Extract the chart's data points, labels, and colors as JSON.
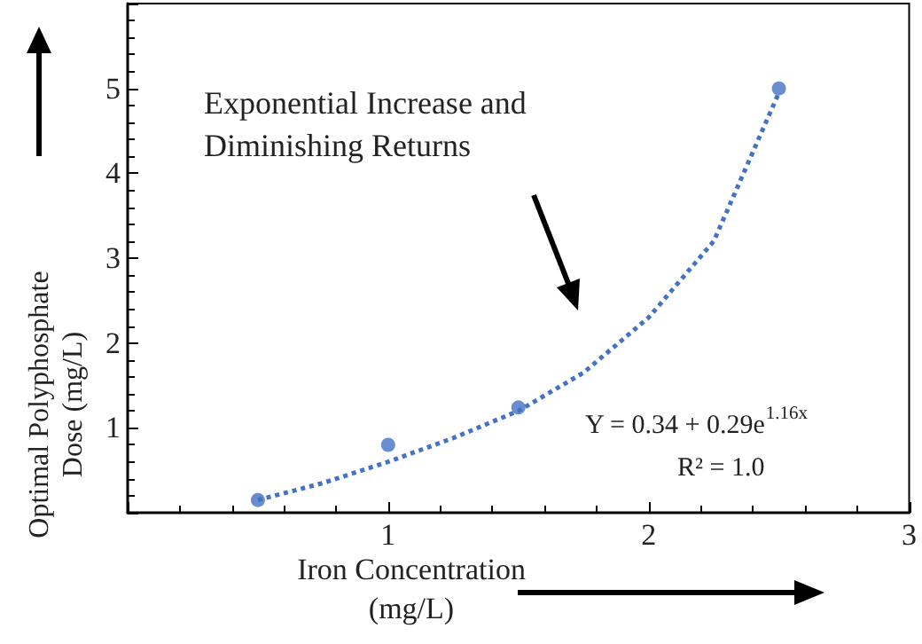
{
  "chart_data": {
    "type": "scatter",
    "xlabel": "Iron Concentration\n(mg/L)",
    "ylabel": "Optimal Polyphosphate\nDose (mg/L)",
    "xlim": [
      0,
      3
    ],
    "xticks": [
      1,
      2,
      3
    ],
    "ylim": [
      0,
      6
    ],
    "yticks": [
      1,
      2,
      3,
      4,
      5
    ],
    "grid": false,
    "marker": "circle",
    "series": [
      {
        "color": "#4472c4",
        "x": [
          0.5,
          1,
          1.5,
          2.5
        ],
        "values": [
          0.15,
          0.8,
          1.24,
          5.0
        ]
      },
      {
        "type": "line",
        "line_style": "dotted",
        "marker": "none",
        "color": "#4472c4",
        "x": [
          0.5,
          0.75,
          1,
          1.25,
          1.5,
          1.75,
          2,
          2.25,
          2.5
        ],
        "values": [
          0.15,
          0.35,
          0.6,
          0.88,
          1.2,
          1.65,
          2.3,
          3.2,
          4.95
        ]
      }
    ],
    "annotations": [
      "Exponential Increase and\nDiminishing Returns",
      "Y = 0.34 + 0.29e$^{1.16x}$",
      "R² = 1.0"
    ]
  }
}
